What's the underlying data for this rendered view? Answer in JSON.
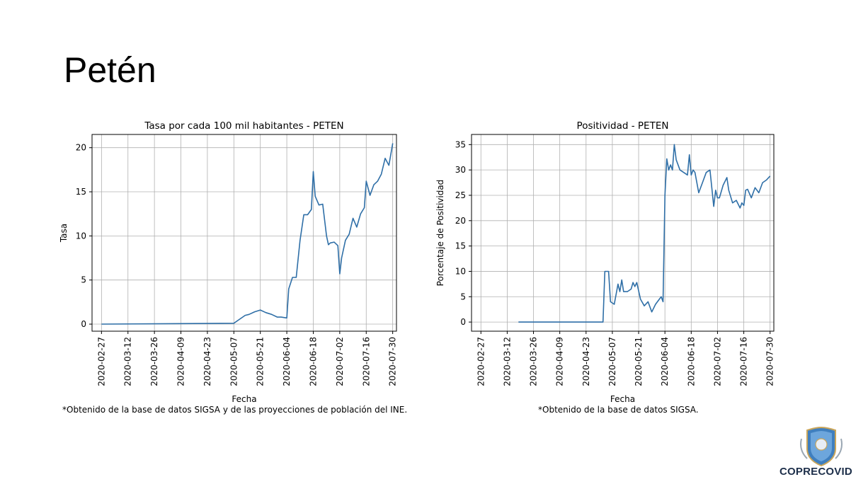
{
  "slide": {
    "title": "Petén"
  },
  "footnotes": {
    "left": "*Obtenido de la base de datos SIGSA y de las proyecciones de población del INE.",
    "right": "*Obtenido de la base de datos SIGSA."
  },
  "logo": {
    "text": "COPRECOVID",
    "emblem": "shield-emblem-icon"
  },
  "colors": {
    "line": "#2f6fa7",
    "grid": "#b0b0b0"
  },
  "chart_data": [
    {
      "type": "line",
      "title": "Tasa por cada 100 mil habitantes - PETEN",
      "xlabel": "Fecha",
      "ylabel": "Tasa",
      "x_ticks": [
        "2020-02-27",
        "2020-03-12",
        "2020-03-26",
        "2020-04-09",
        "2020-04-23",
        "2020-05-07",
        "2020-05-21",
        "2020-06-04",
        "2020-06-18",
        "2020-07-02",
        "2020-07-16",
        "2020-07-30"
      ],
      "y_ticks": [
        0,
        5,
        10,
        15,
        20
      ],
      "xlim": [
        "2020-02-22",
        "2020-08-01"
      ],
      "ylim": [
        -0.8,
        21.5
      ],
      "grid": true,
      "series": [
        {
          "x": [
            "2020-02-27",
            "2020-05-07",
            "2020-05-09",
            "2020-05-13",
            "2020-05-15",
            "2020-05-18",
            "2020-05-21",
            "2020-05-24",
            "2020-05-27",
            "2020-05-30",
            "2020-06-01",
            "2020-06-04",
            "2020-06-05",
            "2020-06-07",
            "2020-06-09",
            "2020-06-11",
            "2020-06-13",
            "2020-06-15",
            "2020-06-17",
            "2020-06-18",
            "2020-06-19",
            "2020-06-21",
            "2020-06-23",
            "2020-06-25",
            "2020-06-26",
            "2020-06-27",
            "2020-06-29",
            "2020-07-01",
            "2020-07-02",
            "2020-07-03",
            "2020-07-05",
            "2020-07-07",
            "2020-07-09",
            "2020-07-11",
            "2020-07-13",
            "2020-07-15",
            "2020-07-16",
            "2020-07-18",
            "2020-07-20",
            "2020-07-22",
            "2020-07-24",
            "2020-07-26",
            "2020-07-28",
            "2020-07-30"
          ],
          "y": [
            0,
            0.1,
            0.4,
            1.0,
            1.1,
            1.4,
            1.6,
            1.3,
            1.1,
            0.8,
            0.8,
            0.7,
            4.0,
            5.3,
            5.3,
            9.5,
            12.4,
            12.4,
            13.0,
            17.3,
            14.5,
            13.5,
            13.6,
            10.0,
            9.0,
            9.2,
            9.3,
            8.9,
            5.7,
            7.5,
            9.5,
            10.2,
            12.0,
            11.0,
            12.5,
            13.2,
            16.2,
            14.6,
            15.8,
            16.2,
            17.0,
            18.8,
            18.0,
            20.5
          ]
        }
      ]
    },
    {
      "type": "line",
      "title": "Positividad - PETEN",
      "xlabel": "Fecha",
      "ylabel": "Porcentaje de Positividad",
      "x_ticks": [
        "2020-02-27",
        "2020-03-12",
        "2020-03-26",
        "2020-04-09",
        "2020-04-23",
        "2020-05-07",
        "2020-05-21",
        "2020-06-04",
        "2020-06-18",
        "2020-07-02",
        "2020-07-16",
        "2020-07-30"
      ],
      "y_ticks": [
        0,
        5,
        10,
        15,
        20,
        25,
        30,
        35
      ],
      "xlim": [
        "2020-02-22",
        "2020-08-01"
      ],
      "ylim": [
        -1.8,
        37.0
      ],
      "grid": true,
      "series": [
        {
          "x": [
            "2020-03-18",
            "2020-05-02",
            "2020-05-03",
            "2020-05-05",
            "2020-05-06",
            "2020-05-08",
            "2020-05-10",
            "2020-05-11",
            "2020-05-12",
            "2020-05-13",
            "2020-05-15",
            "2020-05-17",
            "2020-05-18",
            "2020-05-19",
            "2020-05-20",
            "2020-05-22",
            "2020-05-24",
            "2020-05-26",
            "2020-05-28",
            "2020-05-30",
            "2020-06-01",
            "2020-06-02",
            "2020-06-03",
            "2020-06-04",
            "2020-06-05",
            "2020-06-06",
            "2020-06-07",
            "2020-06-08",
            "2020-06-09",
            "2020-06-10",
            "2020-06-12",
            "2020-06-14",
            "2020-06-16",
            "2020-06-17",
            "2020-06-18",
            "2020-06-19",
            "2020-06-20",
            "2020-06-22",
            "2020-06-24",
            "2020-06-26",
            "2020-06-28",
            "2020-06-30",
            "2020-07-01",
            "2020-07-02",
            "2020-07-03",
            "2020-07-05",
            "2020-07-07",
            "2020-07-08",
            "2020-07-10",
            "2020-07-12",
            "2020-07-14",
            "2020-07-15",
            "2020-07-16",
            "2020-07-17",
            "2020-07-18",
            "2020-07-20",
            "2020-07-22",
            "2020-07-24",
            "2020-07-26",
            "2020-07-28",
            "2020-07-30"
          ],
          "y": [
            0,
            0,
            10.0,
            10.0,
            4.0,
            3.5,
            7.5,
            6.0,
            8.3,
            6.0,
            6.0,
            6.5,
            7.8,
            7.0,
            7.8,
            4.5,
            3.2,
            4.0,
            2.0,
            3.5,
            4.5,
            5.0,
            4.0,
            25.0,
            32.2,
            30.0,
            31.0,
            30.0,
            35.0,
            32.0,
            30.0,
            29.5,
            29.0,
            33.0,
            29.0,
            30.0,
            29.5,
            25.5,
            27.5,
            29.5,
            30.0,
            22.8,
            26.0,
            24.5,
            24.5,
            27.0,
            28.5,
            26.0,
            23.5,
            24.0,
            22.5,
            23.5,
            23.0,
            26.0,
            26.2,
            24.5,
            26.5,
            25.5,
            27.5,
            28.0,
            28.8
          ]
        }
      ]
    }
  ]
}
